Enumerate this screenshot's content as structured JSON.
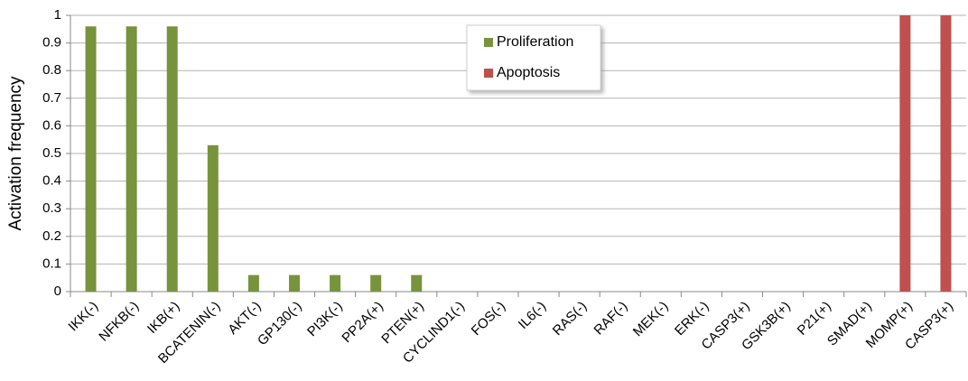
{
  "chart_data": {
    "type": "bar",
    "y_label": "Activation frequency",
    "categories": [
      "IKK(-)",
      "NFKB(-)",
      "IKB(+)",
      "BCATENIN(-)",
      "AKT(-)",
      "GP130(-)",
      "PI3K(-)",
      "PP2A(+)",
      "PTEN(+)",
      "CYCLIND1(-)",
      "FOS(-)",
      "IL6(-)",
      "RAS(-)",
      "RAF(-)",
      "MEK(-)",
      "ERK(-)",
      "CASP3(+)",
      "GSK3B(+)",
      "P21(+)",
      "SMAD(+)",
      "MOMP(+)",
      "CASP3(+)"
    ],
    "series": [
      {
        "name": "Proliferation",
        "color": "#77933c",
        "values": [
          0.96,
          0.96,
          0.96,
          0.53,
          0.06,
          0.06,
          0.06,
          0.06,
          0.06,
          0,
          0,
          0,
          0,
          0,
          0,
          0,
          0,
          0,
          0,
          0,
          null,
          null
        ]
      },
      {
        "name": "Apoptosis",
        "color": "#c0504d",
        "values": [
          null,
          null,
          null,
          null,
          null,
          null,
          null,
          null,
          null,
          null,
          null,
          null,
          null,
          null,
          null,
          null,
          null,
          null,
          null,
          null,
          1,
          1
        ]
      }
    ],
    "ylim": [
      0,
      1
    ],
    "yticks": [
      0,
      0.1,
      0.2,
      0.3,
      0.4,
      0.5,
      0.6,
      0.7,
      0.8,
      0.9,
      1
    ],
    "grid": true,
    "legend": "top"
  }
}
